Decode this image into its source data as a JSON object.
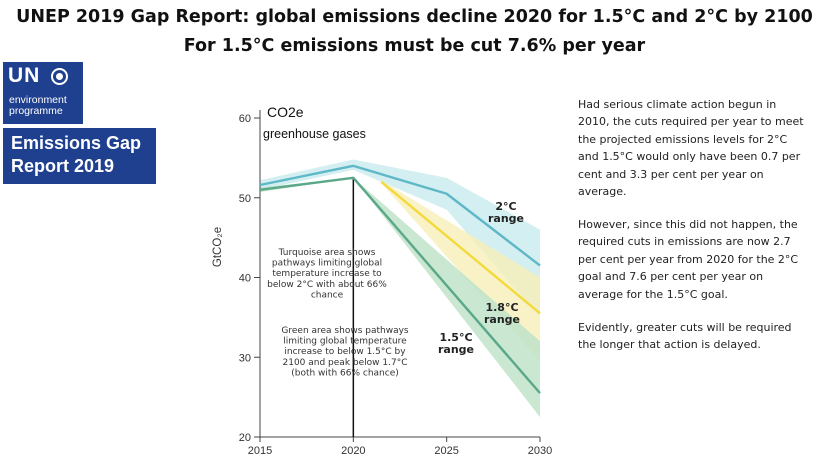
{
  "header": {
    "title_line1": "UNEP 2019 Gap Report: global emissions decline 2020 for 1.5°C and 2°C by 2100",
    "title_line2": "For 1.5°C emissions must be cut 7.6% per year"
  },
  "logo": {
    "un": "UN",
    "line1": "environment",
    "line2": "programme",
    "report_line1": "Emissions Gap",
    "report_line2": "Report 2019"
  },
  "side_text": {
    "p1": "Had serious climate action begun in 2010, the cuts required per year to meet the projected emissions levels for 2°C and 1.5°C would only have been 0.7 per cent and 3.3 per cent per year on average.",
    "p2": "However, since this did not happen, the required cuts in emissions are now 2.7 per cent per year from 2020 for the 2°C goal and 7.6 per cent per year on average for the 1.5°C goal.",
    "p3": "Evidently, greater cuts will be required the longer that action is delayed."
  },
  "colors": {
    "turquoise": "#5fb8c8",
    "turquoise_fill": "#c9ebee",
    "yellow": "#f2da3c",
    "yellow_fill": "#f6efb8",
    "green": "#5aa889",
    "green_fill": "#bfe3c9",
    "logo_blue": "#1f3f8f"
  },
  "chart_data": {
    "type": "area",
    "title": "CO2e",
    "subtitle": "greenhouse gases",
    "ylabel": "GtCO₂e",
    "xlim": [
      2015,
      2030
    ],
    "ylim": [
      20,
      62
    ],
    "x_ticks": [
      2015,
      2020,
      2025,
      2030
    ],
    "y_ticks": [
      20,
      30,
      40,
      50,
      60
    ],
    "series": [
      {
        "name": "2°C range",
        "color": "#5fb8c8",
        "x": [
          2015,
          2020,
          2025,
          2030
        ],
        "values": [
          51.6,
          54,
          50.5,
          41.5
        ],
        "band_upper": [
          52.2,
          54.8,
          52.5,
          46
        ],
        "band_lower": [
          51,
          53.5,
          48.5,
          35
        ]
      },
      {
        "name": "1.8°C range",
        "color": "#f2da3c",
        "x": [
          2021.5,
          2030
        ],
        "values": [
          52,
          35.5
        ],
        "band_upper": [
          52.2,
          40
        ],
        "band_lower": [
          51.8,
          29.5
        ]
      },
      {
        "name": "1.5°C range",
        "color": "#5aa889",
        "x": [
          2015,
          2020,
          2030
        ],
        "values": [
          51,
          52.5,
          25.5
        ],
        "band_upper": [
          51.3,
          52.5,
          32
        ],
        "band_lower": [
          50.7,
          52.5,
          22.5
        ]
      }
    ],
    "annotations": [
      "Turquoise area shows pathways limiting global temperature increase to below 2°C with about 66% chance",
      "Green area shows pathways limiting global temperature increase to below 1.5°C by 2100 and peak below 1.7°C (both with 66% chance)"
    ],
    "series_labels": [
      {
        "line1": "2°C",
        "line2": "range"
      },
      {
        "line1": "1.8°C",
        "line2": "range"
      },
      {
        "line1": "1.5°C",
        "line2": "range"
      }
    ]
  }
}
